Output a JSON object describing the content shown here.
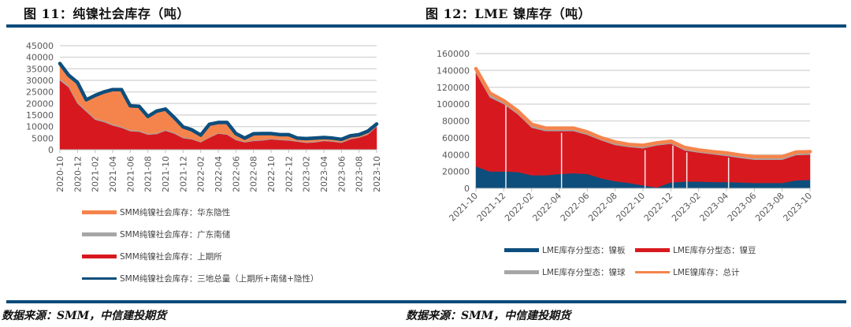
{
  "header": {
    "fig11_title": "图 11：纯镍社会库存（吨）",
    "fig12_title": "图 12：LME 镍库存（吨）"
  },
  "footer": {
    "source_left": "数据来源：SMM，中信建投期货",
    "source_right": "数据来源：SMM，中信建投期货"
  },
  "colors": {
    "rule": "#0b4a7a",
    "orange": "#f5844c",
    "gray": "#a6a6a6",
    "red": "#d7191f",
    "navy": "#0d4e7c",
    "grid": "#d9d9d9",
    "axis_text": "#595959"
  },
  "chart_data": [
    {
      "type": "area",
      "title": "纯镍社会库存（吨）",
      "xlabel": "",
      "ylabel": "吨",
      "ylim": [
        0,
        45000
      ],
      "yticks": [
        "0",
        "5000",
        "10000",
        "15000",
        "20000",
        "25000",
        "30000",
        "35000",
        "40000",
        "45000"
      ],
      "xticks": [
        "2020-10",
        "2020-12",
        "2021-02",
        "2021-04",
        "2021-06",
        "2021-08",
        "2021-10",
        "2021-12",
        "2022-02",
        "2022-04",
        "2022-06",
        "2022-08",
        "2022-10",
        "2022-12",
        "2023-02",
        "2023-04",
        "2023-06",
        "2023-08",
        "2023-10"
      ],
      "grid": true,
      "legend_position": "bottom",
      "x": [
        "2020-10",
        "2020-11",
        "2020-12",
        "2021-01",
        "2021-02",
        "2021-03",
        "2021-04",
        "2021-05",
        "2021-06",
        "2021-07",
        "2021-08",
        "2021-09",
        "2021-10",
        "2021-11",
        "2021-12",
        "2022-01",
        "2022-02",
        "2022-03",
        "2022-04",
        "2022-05",
        "2022-06",
        "2022-07",
        "2022-08",
        "2022-09",
        "2022-10",
        "2022-11",
        "2022-12",
        "2023-01",
        "2023-02",
        "2023-03",
        "2023-04",
        "2023-05",
        "2023-06",
        "2023-07",
        "2023-08",
        "2023-09",
        "2023-10"
      ],
      "series": [
        {
          "name": "SMM纯镍社会库存：上期所",
          "kind": "stacked-area",
          "color": "#d7191f",
          "values": [
            30000,
            27000,
            20000,
            16500,
            13000,
            12000,
            10500,
            9500,
            8000,
            7800,
            6500,
            6800,
            8200,
            7000,
            5000,
            4500,
            3200,
            5200,
            7000,
            6500,
            4200,
            3200,
            3800,
            4000,
            4500,
            4200,
            4000,
            3500,
            3000,
            3200,
            3800,
            3500,
            3000,
            4500,
            5200,
            6500,
            10000
          ]
        },
        {
          "name": "SMM纯镍社会库存：广东南储",
          "kind": "stacked-area",
          "color": "#a6a6a6",
          "values": [
            800,
            700,
            600,
            600,
            500,
            500,
            500,
            500,
            500,
            500,
            400,
            400,
            400,
            400,
            400,
            300,
            300,
            300,
            300,
            300,
            300,
            300,
            300,
            300,
            300,
            300,
            300,
            300,
            300,
            300,
            300,
            300,
            300,
            300,
            300,
            300,
            300
          ]
        },
        {
          "name": "SMM纯镍社会库存：华东隐性",
          "kind": "stacked-area",
          "color": "#f5844c",
          "values": [
            6500,
            4500,
            8500,
            4500,
            10000,
            12500,
            15000,
            16000,
            10500,
            10500,
            7500,
            9500,
            9000,
            6500,
            4500,
            3800,
            2800,
            5500,
            4500,
            5000,
            2500,
            1500,
            2800,
            2700,
            2200,
            2000,
            2200,
            1200,
            1500,
            1500,
            1200,
            1200,
            1200,
            1200,
            1000,
            1200,
            800
          ]
        },
        {
          "name": "SMM纯镍社会库存：三地总量（上期所+南储+隐性）",
          "kind": "line",
          "color": "#0d4e7c",
          "values": [
            37300,
            32200,
            29100,
            21600,
            23500,
            25000,
            26000,
            26000,
            19000,
            18800,
            14400,
            16700,
            17600,
            13900,
            9900,
            8600,
            6300,
            11000,
            11800,
            11800,
            7000,
            5000,
            6900,
            7000,
            7000,
            6500,
            6500,
            5000,
            4800,
            5000,
            5300,
            5000,
            4500,
            6000,
            6500,
            8000,
            11100
          ]
        }
      ]
    },
    {
      "type": "area",
      "title": "LME 镍库存（吨）",
      "xlabel": "",
      "ylabel": "吨",
      "ylim": [
        0,
        160000
      ],
      "yticks": [
        "0",
        "20000",
        "40000",
        "60000",
        "80000",
        "100000",
        "120000",
        "140000",
        "160000"
      ],
      "xticks": [
        "2021-10",
        "2021-12",
        "2022-02",
        "2022-04",
        "2022-06",
        "2022-08",
        "2022-10",
        "2022-12",
        "2023-02",
        "2023-04",
        "2023-06",
        "2023-08",
        "2023-10"
      ],
      "grid": true,
      "legend_position": "bottom",
      "x": [
        "2021-10",
        "2021-11",
        "2021-12",
        "2022-01",
        "2022-02",
        "2022-03",
        "2022-04",
        "2022-05",
        "2022-06",
        "2022-07",
        "2022-08",
        "2022-09",
        "2022-10",
        "2022-11",
        "2022-12",
        "2023-01",
        "2023-02",
        "2023-03",
        "2023-04",
        "2023-05",
        "2023-06",
        "2023-07",
        "2023-08",
        "2023-09",
        "2023-10"
      ],
      "series": [
        {
          "name": "LME库存分型态：镍板",
          "kind": "stacked-area",
          "color": "#0d4e7c",
          "values": [
            26000,
            20000,
            20000,
            19500,
            15500,
            15500,
            17000,
            18000,
            17000,
            12000,
            8500,
            6500,
            3500,
            1000,
            7000,
            8000,
            8000,
            7500,
            7500,
            7000,
            6500,
            6500,
            6500,
            9500,
            10000
          ]
        },
        {
          "name": "LME库存分型态：镍豆",
          "kind": "stacked-area",
          "color": "#d7191f",
          "values": [
            111000,
            88000,
            80000,
            68500,
            56500,
            52500,
            51000,
            50000,
            46500,
            45000,
            43000,
            42500,
            44000,
            50000,
            46000,
            37000,
            34500,
            33000,
            31000,
            29000,
            27500,
            27500,
            27500,
            30000,
            30000
          ]
        },
        {
          "name": "LME库存分型态：镍球",
          "kind": "stacked-area",
          "color": "#a6a6a6",
          "values": [
            3000,
            2500,
            2000,
            2000,
            2000,
            1500,
            1500,
            1500,
            1500,
            1500,
            1500,
            1500,
            1500,
            1500,
            1500,
            1500,
            1500,
            1500,
            1500,
            1500,
            1500,
            1500,
            1500,
            1500,
            1500
          ]
        },
        {
          "name": "LME镍库存：总计",
          "kind": "line",
          "color": "#f5844c",
          "values": [
            142000,
            113000,
            104000,
            92000,
            76000,
            71500,
            71500,
            71500,
            67000,
            60000,
            55000,
            52000,
            51000,
            54000,
            56000,
            48500,
            45500,
            43500,
            42000,
            39500,
            37500,
            37500,
            37500,
            43000,
            43500
          ]
        }
      ],
      "gaps": [
        "2021-12",
        "2022-04",
        "2022-10",
        "2022-12",
        "2023-01",
        "2023-04",
        "2023-10"
      ]
    }
  ]
}
